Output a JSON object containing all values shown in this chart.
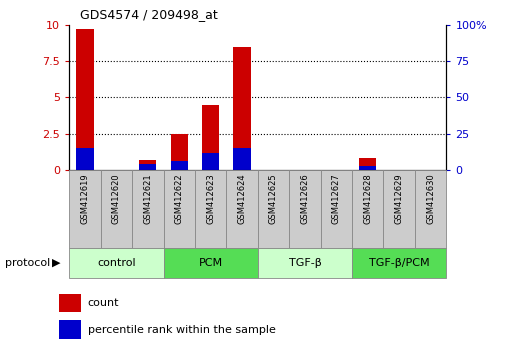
{
  "title": "GDS4574 / 209498_at",
  "samples": [
    "GSM412619",
    "GSM412620",
    "GSM412621",
    "GSM412622",
    "GSM412623",
    "GSM412624",
    "GSM412625",
    "GSM412626",
    "GSM412627",
    "GSM412628",
    "GSM412629",
    "GSM412630"
  ],
  "count_values": [
    9.7,
    0.0,
    0.7,
    2.5,
    4.5,
    8.5,
    0.0,
    0.0,
    0.0,
    0.8,
    0.0,
    0.0
  ],
  "percentile_values": [
    15.0,
    0.0,
    4.0,
    6.0,
    12.0,
    15.0,
    0.0,
    0.0,
    0.0,
    3.0,
    0.0,
    0.0
  ],
  "count_color": "#cc0000",
  "percentile_color": "#0000cc",
  "ylim_left": [
    0,
    10
  ],
  "ylim_right": [
    0,
    100
  ],
  "yticks_left": [
    0,
    2.5,
    5.0,
    7.5,
    10
  ],
  "yticks_right": [
    0,
    25,
    50,
    75,
    100
  ],
  "ytick_labels_left": [
    "0",
    "2.5",
    "5",
    "7.5",
    "10"
  ],
  "ytick_labels_right": [
    "0",
    "25",
    "50",
    "75",
    "100%"
  ],
  "groups": [
    {
      "label": "control",
      "start": 0,
      "end": 3,
      "color": "#ccffcc"
    },
    {
      "label": "PCM",
      "start": 3,
      "end": 6,
      "color": "#55dd55"
    },
    {
      "label": "TGF-β",
      "start": 6,
      "end": 9,
      "color": "#ccffcc"
    },
    {
      "label": "TGF-β/PCM",
      "start": 9,
      "end": 12,
      "color": "#55dd55"
    }
  ],
  "bar_width": 0.55,
  "background_color": "#ffffff",
  "grid_color": "#000000",
  "tick_label_color_left": "#cc0000",
  "tick_label_color_right": "#0000cc",
  "legend_count_label": "count",
  "legend_percentile_label": "percentile rank within the sample",
  "protocol_label": "protocol",
  "sample_box_color": "#cccccc",
  "sample_box_edge": "#888888"
}
